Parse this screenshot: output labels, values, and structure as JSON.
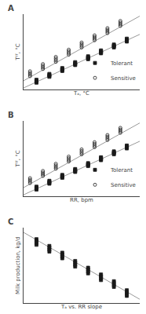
{
  "chart_data": [
    {
      "type": "scatter",
      "title": "A",
      "xlabel": "Tₐ, °C",
      "ylabel": "Tᴵᵀ, °C",
      "xlim": [
        0,
        9
      ],
      "ylim": [
        0,
        11.5
      ],
      "tick_labels": false,
      "grid": false,
      "legend": "lower right",
      "series": [
        {
          "type": "line",
          "color": "#999999",
          "x": [
            0,
            9
          ],
          "values": [
            0.2,
            8.4
          ]
        },
        {
          "type": "line",
          "color": "#999999",
          "x": [
            0,
            9
          ],
          "values": [
            1.3,
            11.2
          ]
        },
        {
          "type": "scatter",
          "name": "Tolerant",
          "color": "#1a1a1a",
          "marker": "square",
          "x": [
            1,
            1,
            1,
            1,
            2,
            2,
            2,
            2,
            3,
            3,
            3,
            3,
            4,
            4,
            4,
            4,
            5,
            5,
            5,
            5,
            6,
            6,
            6,
            6,
            7,
            7,
            7,
            7,
            8,
            8,
            8,
            8
          ],
          "values": [
            1.0,
            1.15,
            1.3,
            1.45,
            1.9,
            2.05,
            2.2,
            2.35,
            2.8,
            2.95,
            3.1,
            3.25,
            3.7,
            3.85,
            4.0,
            4.15,
            4.6,
            4.75,
            4.9,
            5.05,
            5.5,
            5.65,
            5.8,
            5.95,
            6.4,
            6.55,
            6.7,
            6.85,
            7.3,
            7.45,
            7.6,
            7.75
          ]
        },
        {
          "type": "scatter",
          "name": "Sensitive",
          "color": "#1a1a1a",
          "marker": "open circle",
          "x": [
            0.5,
            0.5,
            0.5,
            0.5,
            1.5,
            1.5,
            1.5,
            1.5,
            2.5,
            2.5,
            2.5,
            2.5,
            3.5,
            3.5,
            3.5,
            3.5,
            4.5,
            4.5,
            4.5,
            4.5,
            5.5,
            5.5,
            5.5,
            5.5,
            6.5,
            6.5,
            6.5,
            6.5,
            7.5,
            7.5,
            7.5,
            7.5
          ],
          "values": [
            2.0,
            2.25,
            2.5,
            2.75,
            3.1,
            3.35,
            3.6,
            3.85,
            4.2,
            4.45,
            4.7,
            4.95,
            5.3,
            5.55,
            5.8,
            6.05,
            6.4,
            6.65,
            6.9,
            7.15,
            7.5,
            7.75,
            8.0,
            8.25,
            8.6,
            8.85,
            9.1,
            9.35,
            9.7,
            9.95,
            10.2,
            10.45
          ]
        }
      ]
    },
    {
      "type": "scatter",
      "title": "B",
      "xlabel": "RR, bpm",
      "ylabel": "Tᴵᵀ, °C",
      "xlim": [
        0,
        9
      ],
      "ylim": [
        0,
        11.5
      ],
      "tick_labels": false,
      "grid": false,
      "legend": "lower right",
      "series": [
        {
          "type": "line",
          "color": "#999999",
          "x": [
            0,
            9
          ],
          "values": [
            0.2,
            8.4
          ]
        },
        {
          "type": "line",
          "color": "#999999",
          "x": [
            0,
            9
          ],
          "values": [
            1.3,
            11.2
          ]
        },
        {
          "type": "scatter",
          "name": "Tolerant",
          "color": "#1a1a1a",
          "marker": "square",
          "x": [
            1,
            1,
            1,
            1,
            2,
            2,
            2,
            2,
            3,
            3,
            3,
            3,
            4,
            4,
            4,
            4,
            5,
            5,
            5,
            5,
            6,
            6,
            6,
            6,
            7,
            7,
            7,
            7,
            8,
            8,
            8,
            8
          ],
          "values": [
            1.0,
            1.15,
            1.3,
            1.45,
            1.9,
            2.05,
            2.2,
            2.35,
            2.8,
            2.95,
            3.1,
            3.25,
            3.7,
            3.85,
            4.0,
            4.15,
            4.6,
            4.75,
            4.9,
            5.05,
            5.5,
            5.65,
            5.8,
            5.95,
            6.4,
            6.55,
            6.7,
            6.85,
            7.3,
            7.45,
            7.6,
            7.75
          ]
        },
        {
          "type": "scatter",
          "name": "Sensitive",
          "color": "#1a1a1a",
          "marker": "open circle",
          "x": [
            0.5,
            0.5,
            0.5,
            0.5,
            1.5,
            1.5,
            1.5,
            1.5,
            2.5,
            2.5,
            2.5,
            2.5,
            3.5,
            3.5,
            3.5,
            3.5,
            4.5,
            4.5,
            4.5,
            4.5,
            5.5,
            5.5,
            5.5,
            5.5,
            6.5,
            6.5,
            6.5,
            6.5,
            7.5,
            7.5,
            7.5,
            7.5
          ],
          "values": [
            2.0,
            2.25,
            2.5,
            2.75,
            3.1,
            3.35,
            3.6,
            3.85,
            4.2,
            4.45,
            4.7,
            4.95,
            5.3,
            5.55,
            5.8,
            6.05,
            6.4,
            6.65,
            6.9,
            7.15,
            7.5,
            7.75,
            8.0,
            8.25,
            8.6,
            8.85,
            9.1,
            9.35,
            9.7,
            9.95,
            10.2,
            10.45
          ]
        }
      ]
    },
    {
      "type": "scatter",
      "title": "C",
      "xlabel": "Tₐ vs. RR slope",
      "ylabel": "Milk production, kg/d",
      "xlim": [
        0,
        9
      ],
      "ylim": [
        1.0,
        11.0
      ],
      "tick_labels": false,
      "grid": false,
      "series": [
        {
          "type": "line",
          "color": "#999999",
          "x": [
            0,
            9
          ],
          "values": [
            10.4,
            1.5
          ]
        },
        {
          "type": "scatter",
          "color": "#1a1a1a",
          "marker": "square",
          "x": [
            1,
            1,
            1,
            1,
            2,
            2,
            2,
            2,
            3,
            3,
            3,
            3,
            4,
            4,
            4,
            4,
            5,
            5,
            5,
            5,
            6,
            6,
            6,
            6,
            7,
            7,
            7,
            7,
            8,
            8,
            8,
            8
          ],
          "values": [
            9.5,
            9.25,
            9.0,
            8.75,
            8.6,
            8.35,
            8.1,
            7.85,
            7.7,
            7.45,
            7.2,
            6.95,
            6.6,
            6.35,
            6.1,
            5.85,
            5.7,
            5.45,
            5.2,
            4.95,
            4.8,
            4.55,
            4.3,
            4.05,
            3.9,
            3.65,
            3.4,
            3.15,
            2.7,
            2.45,
            2.2,
            1.95
          ]
        }
      ]
    }
  ]
}
